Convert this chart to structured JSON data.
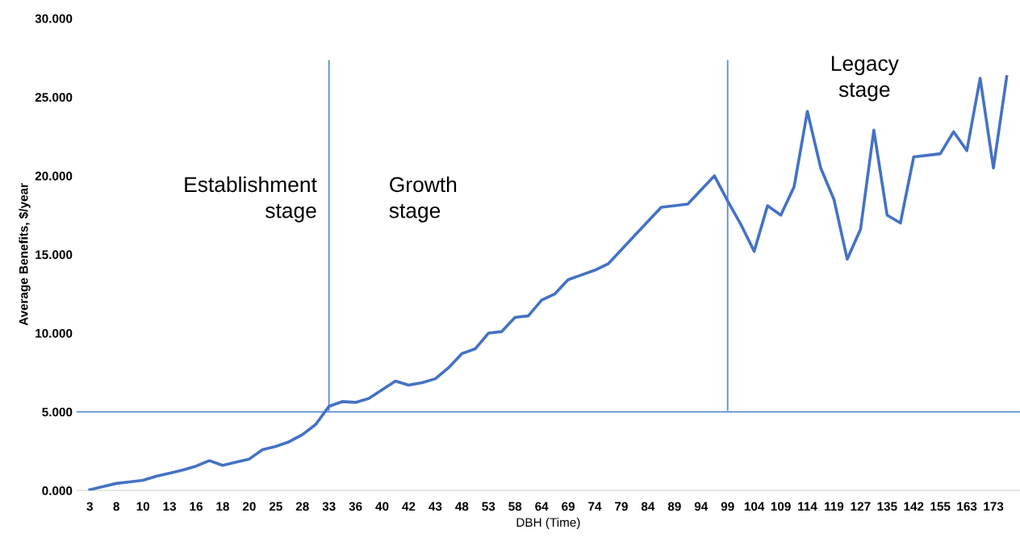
{
  "chart_data": {
    "type": "line",
    "xlabel": "DBH (Time)",
    "ylabel": "Average Benefits, $/year",
    "categories": [
      "3",
      null,
      "8",
      null,
      "10",
      null,
      "13",
      null,
      "16",
      null,
      "18",
      null,
      "20",
      null,
      "25",
      null,
      "28",
      null,
      "33",
      null,
      "36",
      null,
      "40",
      null,
      "42",
      null,
      "43",
      null,
      "48",
      null,
      "53",
      null,
      "58",
      null,
      "64",
      null,
      "69",
      null,
      "74",
      null,
      "79",
      null,
      "84",
      null,
      "89",
      null,
      "94",
      null,
      "99",
      null,
      "104",
      null,
      "109",
      null,
      "114",
      null,
      "119",
      null,
      "127",
      null,
      "135",
      null,
      "142",
      null,
      "155",
      null,
      "163",
      null,
      "173",
      null
    ],
    "series": [
      {
        "color": "#4472c4",
        "values": [
          0.05,
          0.25,
          0.45,
          0.55,
          0.65,
          0.9,
          1.1,
          1.3,
          1.55,
          1.9,
          1.6,
          1.8,
          2.0,
          2.6,
          2.8,
          3.1,
          3.55,
          4.2,
          5.35,
          5.65,
          5.6,
          5.85,
          6.4,
          6.95,
          6.7,
          6.85,
          7.1,
          7.8,
          8.7,
          9.0,
          10.0,
          10.1,
          11.0,
          11.1,
          12.1,
          12.5,
          13.4,
          13.7,
          14.0,
          14.4,
          15.3,
          16.2,
          17.1,
          18.0,
          18.1,
          18.2,
          19.1,
          20.0,
          18.4,
          16.9,
          15.2,
          18.1,
          17.5,
          19.3,
          24.1,
          20.5,
          18.5,
          14.7,
          16.6,
          22.9,
          17.5,
          17.0,
          21.2,
          21.3,
          21.4,
          22.8,
          21.6,
          26.2,
          20.5,
          26.3
        ]
      }
    ],
    "ylim": [
      0,
      30
    ],
    "yticks": [
      {
        "value": 0,
        "label": "0.000"
      },
      {
        "value": 5,
        "label": "5.000"
      },
      {
        "value": 10,
        "label": "10.000"
      },
      {
        "value": 15,
        "label": "15.000"
      },
      {
        "value": 20,
        "label": "20.000"
      },
      {
        "value": 25,
        "label": "25.000"
      },
      {
        "value": 30,
        "label": "30.000"
      }
    ],
    "ref_lines": [
      {
        "axis": "y",
        "value": 5,
        "color": "#5b8bd6"
      },
      {
        "axis": "x",
        "value": "33",
        "color": "#5b8bd6"
      },
      {
        "axis": "x",
        "value": "99",
        "color": "#5b8bd6"
      }
    ],
    "annotations": [
      "Establishment\nstage",
      "Growth\nstage",
      "Legacy\nstage"
    ],
    "grid": false,
    "legend": false,
    "marker": "none",
    "line_style": "solid"
  }
}
